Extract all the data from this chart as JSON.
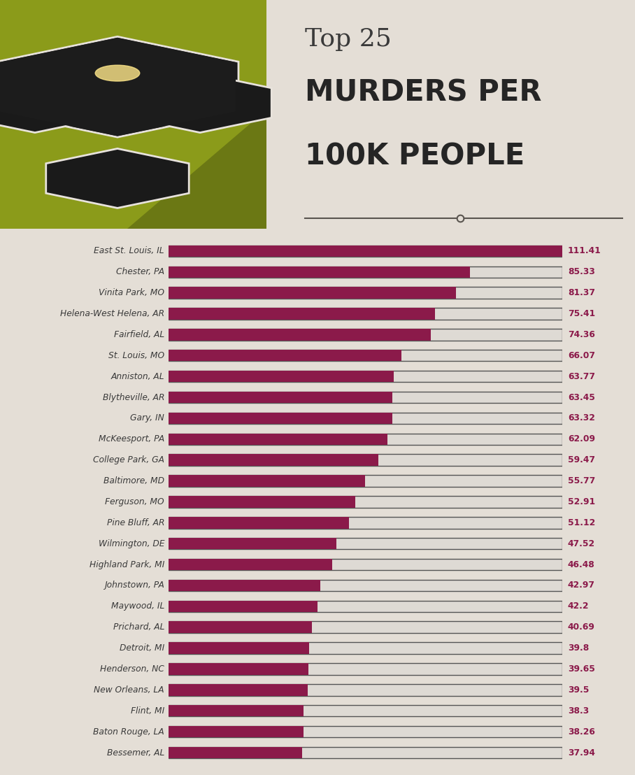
{
  "cities": [
    "East St. Louis, IL",
    "Chester, PA",
    "Vinita Park, MO",
    "Helena-West Helena, AR",
    "Fairfield, AL",
    "St. Louis, MO",
    "Anniston, AL",
    "Blytheville, AR",
    "Gary, IN",
    "McKeesport, PA",
    "College Park, GA",
    "Baltimore, MD",
    "Ferguson, MO",
    "Pine Bluff, AR",
    "Wilmington, DE",
    "Highland Park, MI",
    "Johnstown, PA",
    "Maywood, IL",
    "Prichard, AL",
    "Detroit, MI",
    "Henderson, NC",
    "New Orleans, LA",
    "Flint, MI",
    "Baton Rouge, LA",
    "Bessemer, AL"
  ],
  "values": [
    111.41,
    85.33,
    81.37,
    75.41,
    74.36,
    66.07,
    63.77,
    63.45,
    63.32,
    62.09,
    59.47,
    55.77,
    52.91,
    51.12,
    47.52,
    46.48,
    42.97,
    42.2,
    40.69,
    39.8,
    39.65,
    39.5,
    38.3,
    38.26,
    37.94
  ],
  "max_value": 111.41,
  "bar_color": "#8B1A4A",
  "bar_bg_color": "#dedad4",
  "bar_border_color": "#555555",
  "value_color": "#8B1A4A",
  "label_color": "#3a3a3a",
  "bg_color": "#e4ded6",
  "title_top": "Top 25",
  "title_main_line1": "MURDERS PER",
  "title_main_line2": "100K PEOPLE",
  "title_top_color": "#3a3a3a",
  "title_main_color": "#252525",
  "accent_color": "#8B9B1A",
  "accent_dark": "#6b7814",
  "bar_height": 0.55,
  "bar_linewidth": 1.0,
  "label_fontsize": 8.8,
  "value_fontsize": 8.8
}
